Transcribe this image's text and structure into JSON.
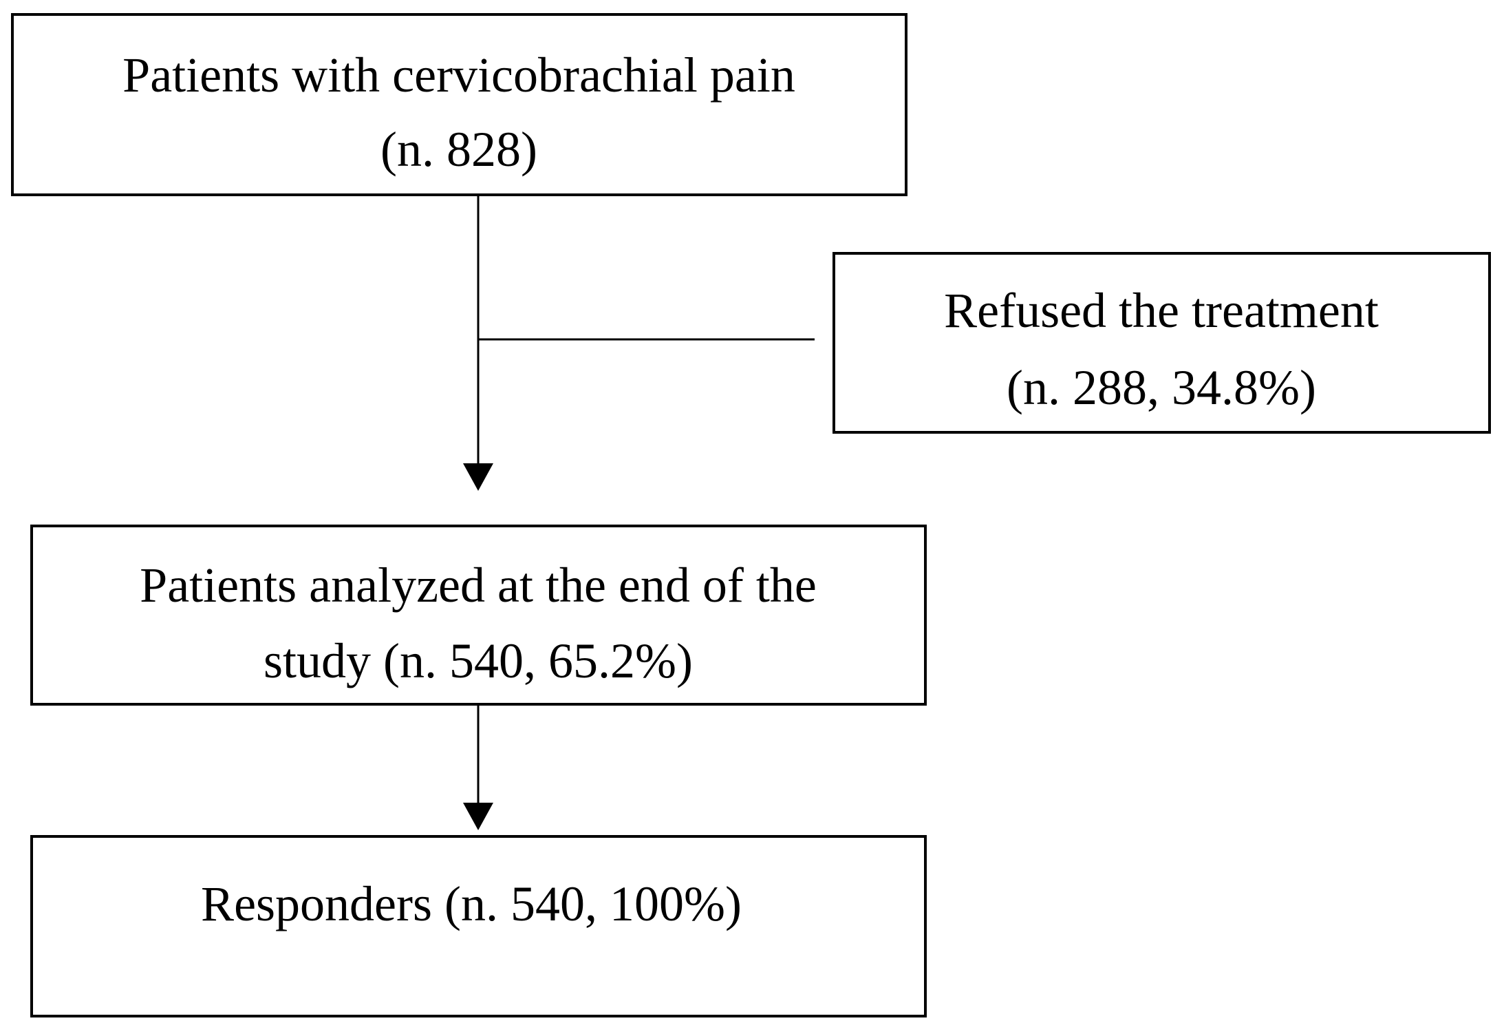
{
  "nodes": [
    {
      "lines": [
        "Patients with cervicobrachial pain",
        "(n. 828)"
      ]
    },
    {
      "lines": [
        "Refused the treatment",
        "(n. 288, 34.8%)"
      ]
    },
    {
      "lines": [
        "Patients analyzed at the end of the",
        "study (n. 540, 65.2%)"
      ]
    },
    {
      "lines": [
        "Responders (n. 540, 100%)"
      ]
    }
  ]
}
